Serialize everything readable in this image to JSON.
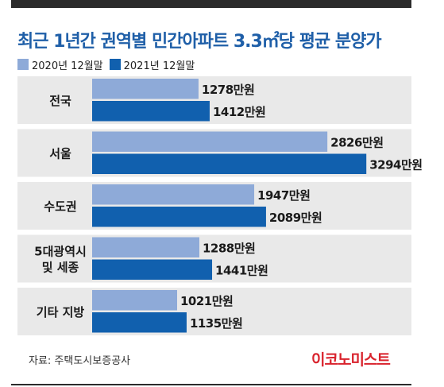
{
  "chart_data": {
    "type": "bar",
    "orientation": "horizontal",
    "title": "최근 1년간 권역별 민간아파트 3.3㎡당 평균 분양가",
    "categories": [
      "전국",
      "서울",
      "수도권",
      "5대광역시 및 세종",
      "기타 지방"
    ],
    "category_lines": [
      [
        "전국"
      ],
      [
        "서울"
      ],
      [
        "수도권"
      ],
      [
        "5대광역시",
        "및 세종"
      ],
      [
        "기타 지방"
      ]
    ],
    "series": [
      {
        "name": "2020년 12월말",
        "color": "#8eaad8",
        "values": [
          1278,
          2826,
          1947,
          1288,
          1021
        ],
        "labels": [
          "1278만원",
          "2826만원",
          "1947만원",
          "1288만원",
          "1021만원"
        ]
      },
      {
        "name": "2021년 12월말",
        "color": "#1160ae",
        "values": [
          1412,
          3294,
          2089,
          1441,
          1135
        ],
        "labels": [
          "1412만원",
          "3294만원",
          "2089만원",
          "1441만원",
          "1135만원"
        ]
      }
    ],
    "legend_position": "top-left",
    "grid": false
  },
  "source": "자료: 주택도시보증공사",
  "logo_text": "이코노미스트",
  "colors": {
    "title": "#1f5fa8",
    "band": "#e9e9e9",
    "logo": "#d9232d",
    "frame": "#2b2b2b"
  }
}
